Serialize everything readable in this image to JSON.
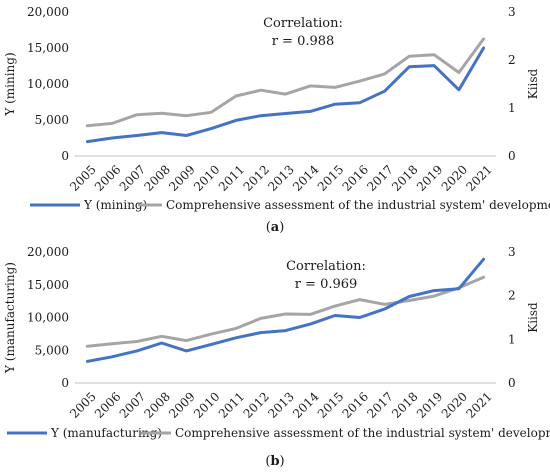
{
  "chart_data": [
    {
      "type": "line",
      "panel_label": [
        "(",
        "a",
        ")"
      ],
      "x": [
        "2005",
        "2006",
        "2007",
        "2008",
        "2009",
        "2010",
        "2011",
        "2012",
        "2013",
        "2014",
        "2015",
        "2016",
        "2017",
        "2018",
        "2019",
        "2020",
        "2021"
      ],
      "ylabel": "Y (mining)",
      "y2label": "Kiisd",
      "ylim": [
        0,
        20000
      ],
      "y2lim": [
        0,
        3
      ],
      "yticks": [
        "0",
        "5,000",
        "10,000",
        "15,000",
        "20,000"
      ],
      "y2ticks": [
        "0",
        "1",
        "2",
        "3"
      ],
      "annotation": [
        "Correlation:",
        "r = 0.988"
      ],
      "legend_position": "bottom",
      "grid": false,
      "series": [
        {
          "name": "Y (mining)",
          "axis": "left",
          "color": "#4472c4",
          "values": [
            2000,
            2500,
            2850,
            3250,
            2850,
            3800,
            4950,
            5600,
            5900,
            6200,
            7200,
            7400,
            9000,
            12400,
            12550,
            9200,
            15000
          ]
        },
        {
          "name": "Comprehensive assessment of the industrial system' development",
          "axis": "right",
          "color": "#a5a5a5",
          "values": [
            0.63,
            0.68,
            0.86,
            0.89,
            0.84,
            0.91,
            1.25,
            1.37,
            1.29,
            1.46,
            1.43,
            1.56,
            1.71,
            2.08,
            2.11,
            1.74,
            2.44
          ]
        }
      ]
    },
    {
      "type": "line",
      "panel_label": [
        "(",
        "b",
        ")"
      ],
      "x": [
        "2005",
        "2006",
        "2007",
        "2008",
        "2009",
        "2010",
        "2011",
        "2012",
        "2013",
        "2014",
        "2015",
        "2016",
        "2017",
        "2018",
        "2019",
        "2020",
        "2021"
      ],
      "ylabel": "Y (manufacturing)",
      "y2label": "Kiisd",
      "ylim": [
        0,
        20000
      ],
      "y2lim": [
        0,
        3
      ],
      "yticks": [
        "0",
        "5,000",
        "10,000",
        "15,000",
        "20,000"
      ],
      "y2ticks": [
        "0",
        "1",
        "2",
        "3"
      ],
      "annotation": [
        "Correlation:",
        "r = 0.969"
      ],
      "legend_position": "bottom",
      "grid": false,
      "series": [
        {
          "name": "Y (manufacturing)",
          "axis": "left",
          "color": "#4472c4",
          "values": [
            3300,
            4000,
            4900,
            6100,
            4900,
            5900,
            6900,
            7700,
            8000,
            9000,
            10300,
            10000,
            11300,
            13200,
            14100,
            14400,
            18900
          ]
        },
        {
          "name": "Comprehensive assessment of the industrial system' development",
          "axis": "right",
          "color": "#a5a5a5",
          "values": [
            0.84,
            0.9,
            0.95,
            1.07,
            0.97,
            1.12,
            1.25,
            1.48,
            1.58,
            1.57,
            1.76,
            1.91,
            1.8,
            1.89,
            1.99,
            2.18,
            2.42
          ]
        }
      ]
    }
  ]
}
